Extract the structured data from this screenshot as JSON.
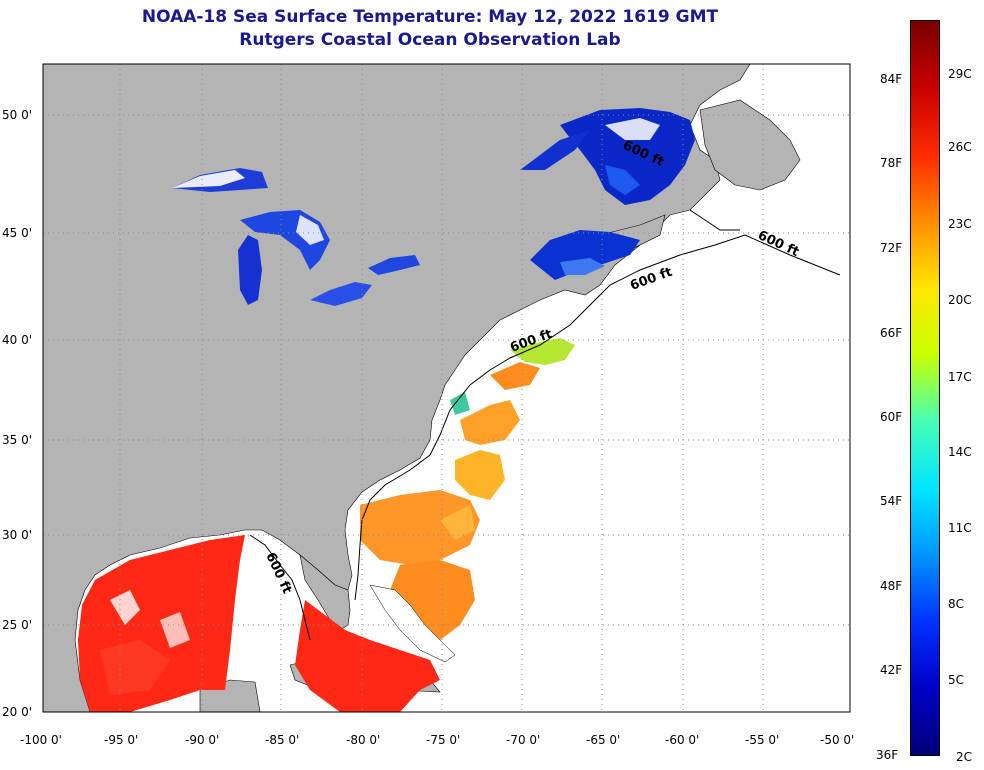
{
  "title": {
    "line1": "NOAA-18 Sea Surface Temperature:  May 12, 2022 1619 GMT",
    "line2": "Rutgers Coastal Ocean Observation Lab"
  },
  "map": {
    "lat_labels": [
      "50 0'",
      "45 0'",
      "40 0'",
      "35 0'",
      "30 0'",
      "25 0'",
      "20 0'"
    ],
    "lon_labels": [
      "-100 0'",
      "-95 0'",
      "-90 0'",
      "-85 0'",
      "-80 0'",
      "-75 0'",
      "-70 0'",
      "-65 0'",
      "-60 0'",
      "-55 0'",
      "-50 0'"
    ],
    "contour_label": "600 ft",
    "colors": {
      "land": "#b4b4b4",
      "ocean_no_data": "#ffffff",
      "grid": "#888888"
    }
  },
  "colorbar": {
    "f_labels": [
      "84F",
      "78F",
      "72F",
      "66F",
      "60F",
      "54F",
      "48F",
      "42F",
      "36F"
    ],
    "c_labels": [
      "29C",
      "26C",
      "23C",
      "20C",
      "17C",
      "14C",
      "11C",
      "8C",
      "5C",
      "2C"
    ],
    "gradient": [
      "#7a0000",
      "#c80000",
      "#ff2a00",
      "#ff8c00",
      "#ffe600",
      "#c8ff00",
      "#46ffb4",
      "#00e6ff",
      "#0096ff",
      "#0032ff",
      "#0000c8",
      "#00007a"
    ]
  }
}
